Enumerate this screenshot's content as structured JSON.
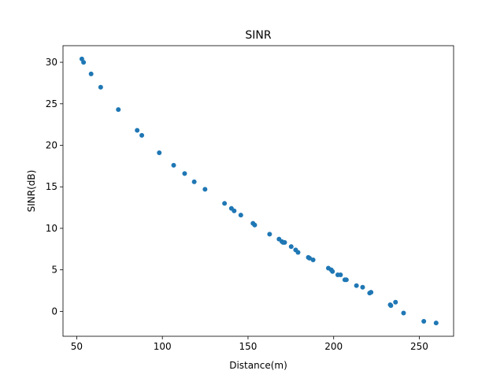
{
  "chart_data": {
    "type": "scatter",
    "title": "SINR",
    "xlabel": "Distance(m)",
    "ylabel": "SINR(dB)",
    "xlim": [
      42.0,
      270.0
    ],
    "ylim": [
      -3.0,
      32.0
    ],
    "xticks": [
      50,
      100,
      150,
      200,
      250
    ],
    "yticks": [
      0,
      5,
      10,
      15,
      20,
      25,
      30
    ],
    "xtick_labels": [
      "50",
      "100",
      "150",
      "200",
      "250"
    ],
    "ytick_labels": [
      "0",
      "5",
      "10",
      "15",
      "20",
      "25",
      "30"
    ],
    "grid": false,
    "marker_color": "#1f77b4",
    "series": [
      {
        "x": [
          53.0,
          54.0,
          58.4,
          64.0,
          74.3,
          85.3,
          88.0,
          98.2,
          106.6,
          113.0,
          118.6,
          124.9,
          136.3,
          140.3,
          141.9,
          145.8,
          152.9,
          153.9,
          162.6,
          168.1,
          169.8,
          170.5,
          171.4,
          175.2,
          177.8,
          179.2,
          185.2,
          185.9,
          188.0,
          196.9,
          198.6,
          199.3,
          202.4,
          204.0,
          206.5,
          207.4,
          213.3,
          216.9,
          221.0,
          221.8,
          233.0,
          233.4,
          236.1,
          240.8,
          252.6,
          259.8
        ],
        "y": [
          30.4,
          30.0,
          28.6,
          27.0,
          24.3,
          21.8,
          21.2,
          19.1,
          17.6,
          16.6,
          15.6,
          14.7,
          13.0,
          12.4,
          12.1,
          11.6,
          10.6,
          10.4,
          9.3,
          8.7,
          8.4,
          8.3,
          8.3,
          7.8,
          7.4,
          7.1,
          6.5,
          6.4,
          6.2,
          5.2,
          5.0,
          4.8,
          4.4,
          4.4,
          3.8,
          3.8,
          3.1,
          2.9,
          2.2,
          2.3,
          0.8,
          0.7,
          1.1,
          -0.2,
          -1.2,
          -1.4
        ]
      }
    ]
  }
}
